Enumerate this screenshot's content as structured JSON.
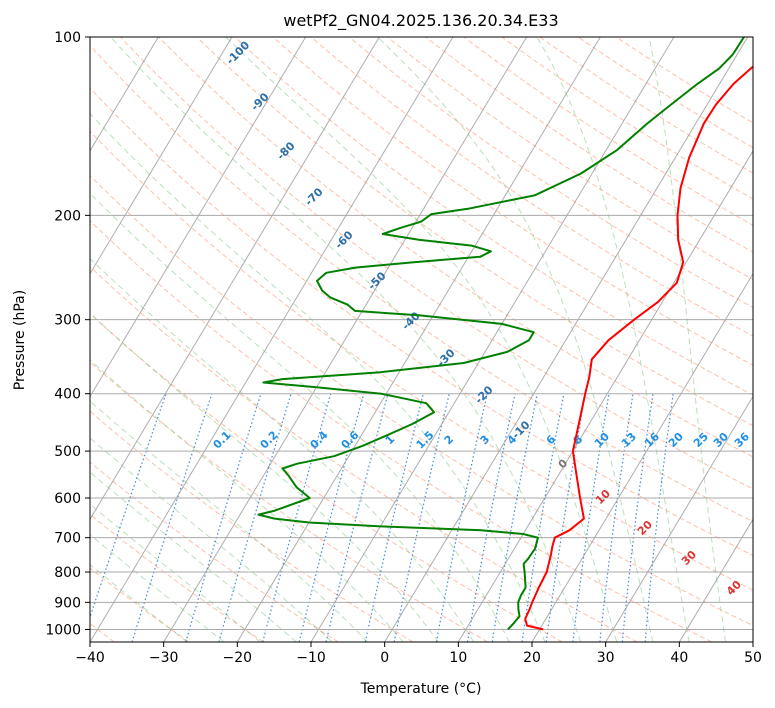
{
  "chart_data": {
    "type": "line",
    "subtype": "skew-T log-p diagram",
    "title": "wetPf2_GN04.2025.136.20.34.E33",
    "xlabel": "Temperature (°C)",
    "ylabel": "Pressure (hPa)",
    "xlim": [
      -40,
      50
    ],
    "ylim": [
      1050,
      100
    ],
    "y_scale": "log",
    "x_ticks": [
      -40,
      -30,
      -20,
      -10,
      0,
      10,
      20,
      30,
      40,
      50
    ],
    "y_ticks": [
      100,
      200,
      300,
      400,
      500,
      600,
      700,
      800,
      900,
      1000
    ],
    "grid": true,
    "series": [
      {
        "color": "#ff0000",
        "points": [
          [
            1000,
            20.5
          ],
          [
            985,
            18.0
          ],
          [
            960,
            17.2
          ],
          [
            925,
            17.0
          ],
          [
            900,
            16.8
          ],
          [
            850,
            16.5
          ],
          [
            800,
            16.3
          ],
          [
            750,
            15.5
          ],
          [
            725,
            15.0
          ],
          [
            700,
            14.6
          ],
          [
            680,
            16.0
          ],
          [
            650,
            17.0
          ],
          [
            600,
            14.8
          ],
          [
            550,
            12.5
          ],
          [
            500,
            10.0
          ],
          [
            450,
            8.6
          ],
          [
            400,
            7.0
          ],
          [
            375,
            6.2
          ],
          [
            350,
            5.1
          ],
          [
            325,
            5.8
          ],
          [
            300,
            7.6
          ],
          [
            280,
            9.4
          ],
          [
            260,
            10.4
          ],
          [
            240,
            9.6
          ],
          [
            220,
            7.1
          ],
          [
            200,
            5.0
          ],
          [
            180,
            3.2
          ],
          [
            160,
            1.9
          ],
          [
            140,
            1.1
          ],
          [
            130,
            1.2
          ],
          [
            120,
            1.9
          ],
          [
            110,
            3.5
          ],
          [
            105,
            5.0
          ],
          [
            100,
            7.0
          ]
        ]
      },
      {
        "color": "#008000",
        "points": [
          [
            1000,
            15.7
          ],
          [
            975,
            16.0
          ],
          [
            950,
            16.2
          ],
          [
            925,
            15.5
          ],
          [
            900,
            14.9
          ],
          [
            875,
            14.7
          ],
          [
            850,
            14.7
          ],
          [
            800,
            13.3
          ],
          [
            775,
            12.5
          ],
          [
            760,
            12.7
          ],
          [
            730,
            12.8
          ],
          [
            700,
            12.3
          ],
          [
            690,
            10.0
          ],
          [
            680,
            4.0
          ],
          [
            670,
            -10.0
          ],
          [
            660,
            -20.0
          ],
          [
            650,
            -25.0
          ],
          [
            640,
            -27.5
          ],
          [
            630,
            -25.6
          ],
          [
            600,
            -21.9
          ],
          [
            575,
            -24.6
          ],
          [
            550,
            -26.6
          ],
          [
            535,
            -28.0
          ],
          [
            525,
            -26.4
          ],
          [
            510,
            -22.0
          ],
          [
            490,
            -19.0
          ],
          [
            470,
            -16.5
          ],
          [
            450,
            -14.0
          ],
          [
            430,
            -12.0
          ],
          [
            415,
            -13.8
          ],
          [
            400,
            -20.7
          ],
          [
            390,
            -30.0
          ],
          [
            383,
            -37.6
          ],
          [
            378,
            -35.3
          ],
          [
            368,
            -22.5
          ],
          [
            355,
            -12.0
          ],
          [
            340,
            -7.0
          ],
          [
            325,
            -5.0
          ],
          [
            315,
            -5.0
          ],
          [
            305,
            -10.0
          ],
          [
            295,
            -22.0
          ],
          [
            290,
            -31.0
          ],
          [
            283,
            -32.5
          ],
          [
            275,
            -35.5
          ],
          [
            268,
            -37.1
          ],
          [
            258,
            -38.6
          ],
          [
            250,
            -38.0
          ],
          [
            245,
            -34.5
          ],
          [
            240,
            -27.0
          ],
          [
            235,
            -18.4
          ],
          [
            230,
            -17.4
          ],
          [
            225,
            -20.5
          ],
          [
            220,
            -28.0
          ],
          [
            215,
            -33.5
          ],
          [
            210,
            -31.6
          ],
          [
            205,
            -29.3
          ],
          [
            199,
            -28.5
          ],
          [
            195,
            -24.0
          ],
          [
            185,
            -16.0
          ],
          [
            170,
            -11.5
          ],
          [
            155,
            -8.5
          ],
          [
            140,
            -6.6
          ],
          [
            130,
            -4.9
          ],
          [
            120,
            -3.0
          ],
          [
            113,
            -1.3
          ],
          [
            107,
            -0.6
          ],
          [
            100,
            -0.5
          ]
        ]
      }
    ],
    "isotherm_labels": [],
    "dry_adiabat_labels": [
      "-100",
      "-90",
      "-80",
      "-70",
      "-60",
      "-50",
      "-40",
      "-30",
      "-20",
      "-10"
    ],
    "moist_adiabat_labels": [
      "0",
      "10",
      "20",
      "30",
      "40"
    ],
    "mixing_ratio_labels": [
      "0.1",
      "0.2",
      "0.4",
      "0.6",
      "1",
      "1.5",
      "2",
      "3",
      "4",
      "6",
      "8",
      "10",
      "13",
      "16",
      "20",
      "25",
      "30",
      "36"
    ]
  }
}
